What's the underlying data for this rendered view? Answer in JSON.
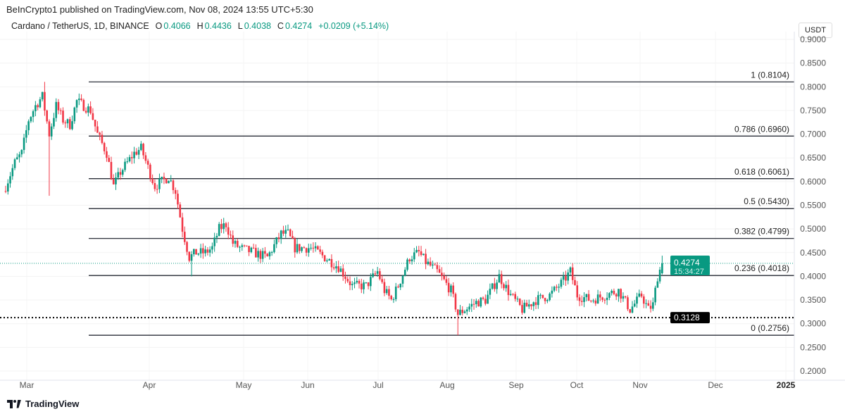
{
  "header": {
    "published": "BeInCrypto1 published on TradingView.com, Nov 08, 2024 13:55 UTC+5:30",
    "symbol": "Cardano / TetherUS, 1D, BINANCE",
    "o_label": "O",
    "o": "0.4066",
    "h_label": "H",
    "h": "0.4436",
    "l_label": "L",
    "l": "0.4038",
    "c_label": "C",
    "c": "0.4274",
    "change": "+0.0209 (+5.14%)",
    "currency": "USDT"
  },
  "footer": {
    "brand": "TradingView"
  },
  "colors": {
    "up": "#089981",
    "down": "#f23645",
    "fib": "#131722",
    "price_tag": "#089981",
    "support_tag": "#000000"
  },
  "chart_data": {
    "type": "candlestick",
    "title": "Cardano / TetherUS, 1D, BINANCE",
    "ylim": [
      0.18,
      0.92
    ],
    "y_ticks": [
      "0.9000",
      "0.8500",
      "0.8000",
      "0.7500",
      "0.7000",
      "0.6500",
      "0.6000",
      "0.5500",
      "0.5000",
      "0.4500",
      "0.4000",
      "0.3500",
      "0.3000",
      "0.2500",
      "0.2000"
    ],
    "x_ticks": [
      "Mar",
      "Apr",
      "May",
      "Jun",
      "Jul",
      "Aug",
      "Sep",
      "Oct",
      "Nov",
      "Dec",
      "2025"
    ],
    "close_keypoints_day_price": [
      [
        0,
        0.59
      ],
      [
        4,
        0.64
      ],
      [
        7,
        0.66
      ],
      [
        10,
        0.73
      ],
      [
        13,
        0.76
      ],
      [
        16,
        0.78
      ],
      [
        19,
        0.7
      ],
      [
        22,
        0.76
      ],
      [
        25,
        0.73
      ],
      [
        28,
        0.72
      ],
      [
        31,
        0.77
      ],
      [
        34,
        0.76
      ],
      [
        37,
        0.75
      ],
      [
        40,
        0.7
      ],
      [
        44,
        0.66
      ],
      [
        47,
        0.59
      ],
      [
        50,
        0.62
      ],
      [
        53,
        0.64
      ],
      [
        56,
        0.66
      ],
      [
        59,
        0.67
      ],
      [
        62,
        0.63
      ],
      [
        65,
        0.59
      ],
      [
        68,
        0.6
      ],
      [
        71,
        0.61
      ],
      [
        74,
        0.58
      ],
      [
        77,
        0.5
      ],
      [
        80,
        0.44
      ],
      [
        83,
        0.45
      ],
      [
        87,
        0.45
      ],
      [
        90,
        0.46
      ],
      [
        93,
        0.5
      ],
      [
        96,
        0.51
      ],
      [
        99,
        0.47
      ],
      [
        102,
        0.46
      ],
      [
        108,
        0.45
      ],
      [
        114,
        0.44
      ],
      [
        120,
        0.49
      ],
      [
        123,
        0.49
      ],
      [
        126,
        0.46
      ],
      [
        133,
        0.46
      ],
      [
        139,
        0.44
      ],
      [
        145,
        0.42
      ],
      [
        151,
        0.38
      ],
      [
        157,
        0.38
      ],
      [
        162,
        0.41
      ],
      [
        165,
        0.37
      ],
      [
        168,
        0.35
      ],
      [
        171,
        0.38
      ],
      [
        176,
        0.44
      ],
      [
        180,
        0.45
      ],
      [
        183,
        0.43
      ],
      [
        188,
        0.41
      ],
      [
        194,
        0.37
      ],
      [
        197,
        0.32
      ],
      [
        200,
        0.33
      ],
      [
        205,
        0.345
      ],
      [
        209,
        0.35
      ],
      [
        215,
        0.4
      ],
      [
        220,
        0.36
      ],
      [
        225,
        0.33
      ],
      [
        231,
        0.35
      ],
      [
        237,
        0.36
      ],
      [
        243,
        0.39
      ],
      [
        246,
        0.41
      ],
      [
        249,
        0.36
      ],
      [
        255,
        0.35
      ],
      [
        261,
        0.36
      ],
      [
        267,
        0.37
      ],
      [
        272,
        0.33
      ],
      [
        277,
        0.36
      ],
      [
        280,
        0.33
      ],
      [
        282,
        0.34
      ],
      [
        284,
        0.4
      ],
      [
        286,
        0.4274
      ]
    ],
    "fib_levels": [
      {
        "level": 1,
        "price": 0.8104,
        "label": "1 (0.8104)"
      },
      {
        "level": 0.786,
        "price": 0.696,
        "label": "0.786 (0.6960)"
      },
      {
        "level": 0.618,
        "price": 0.6061,
        "label": "0.618 (0.6061)"
      },
      {
        "level": 0.5,
        "price": 0.543,
        "label": "0.5 (0.5430)"
      },
      {
        "level": 0.382,
        "price": 0.4799,
        "label": "0.382 (0.4799)"
      },
      {
        "level": 0.236,
        "price": 0.4018,
        "label": "0.236 (0.4018)"
      },
      {
        "level": 0,
        "price": 0.2756,
        "label": "0 (0.2756)"
      }
    ],
    "current_price": {
      "price": 0.4274,
      "label": "0.4274",
      "countdown": "15:34:27"
    },
    "support": {
      "price": 0.3128,
      "label": "0.3128"
    }
  }
}
